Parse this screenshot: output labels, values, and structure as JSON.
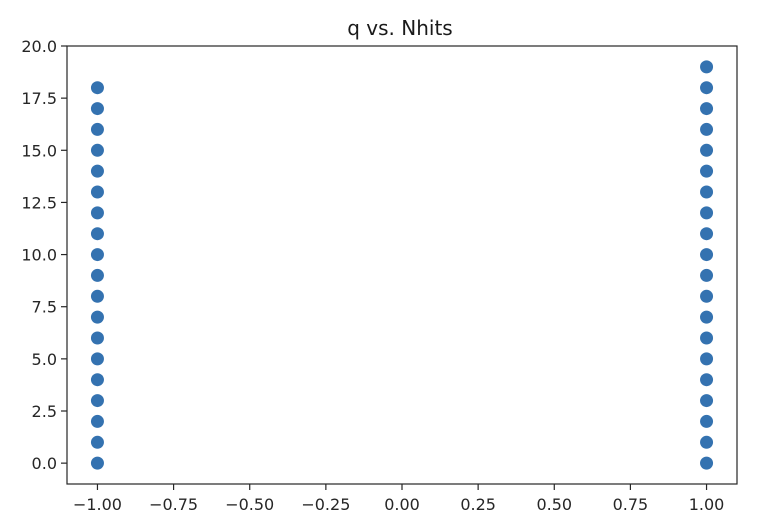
{
  "chart_data": {
    "type": "scatter",
    "title": "q vs. Nhits",
    "xlabel": "",
    "ylabel": "",
    "xlim": [
      -1.1,
      1.1
    ],
    "ylim": [
      -1.0,
      20.0
    ],
    "grid": false,
    "marker_color": "#3472b0",
    "xticks": [
      -1.0,
      -0.75,
      -0.5,
      -0.25,
      0.0,
      0.25,
      0.5,
      0.75,
      1.0
    ],
    "xtick_labels": [
      "−1.00",
      "−0.75",
      "−0.50",
      "−0.25",
      "0.00",
      "0.25",
      "0.50",
      "0.75",
      "1.00"
    ],
    "yticks": [
      0.0,
      2.5,
      5.0,
      7.5,
      10.0,
      12.5,
      15.0,
      17.5,
      20.0
    ],
    "ytick_labels": [
      "0.0",
      "2.5",
      "5.0",
      "7.5",
      "10.0",
      "12.5",
      "15.0",
      "17.5",
      "20.0"
    ],
    "points": {
      "x": [
        -1,
        -1,
        -1,
        -1,
        -1,
        -1,
        -1,
        -1,
        -1,
        -1,
        -1,
        -1,
        -1,
        -1,
        -1,
        -1,
        -1,
        -1,
        -1,
        1,
        1,
        1,
        1,
        1,
        1,
        1,
        1,
        1,
        1,
        1,
        1,
        1,
        1,
        1,
        1,
        1,
        1,
        1,
        1
      ],
      "y": [
        0,
        1,
        2,
        3,
        4,
        5,
        6,
        7,
        8,
        9,
        10,
        11,
        12,
        13,
        14,
        15,
        16,
        17,
        18,
        0,
        1,
        2,
        3,
        4,
        5,
        6,
        7,
        8,
        9,
        10,
        11,
        12,
        13,
        14,
        15,
        16,
        17,
        18,
        19
      ]
    }
  }
}
